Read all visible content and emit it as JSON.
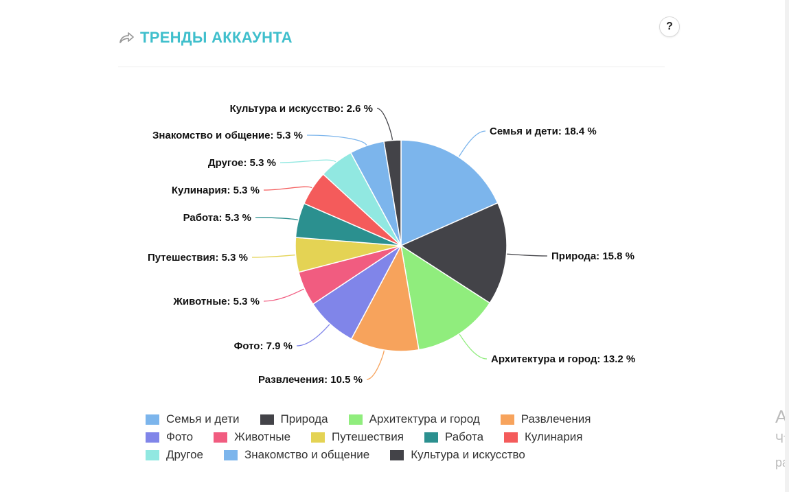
{
  "header": {
    "title": "ТРЕНДЫ АККАУНТА",
    "share_icon": "share-arrow-icon",
    "help_label": "?"
  },
  "cutoff": {
    "line1": "А",
    "line2": "Чт",
    "line3": "ра"
  },
  "chart_data": {
    "type": "pie",
    "unit": "%",
    "categories": [
      "Семья и дети",
      "Природа",
      "Архитектура и город",
      "Развлечения",
      "Фото",
      "Животные",
      "Путешествия",
      "Работа",
      "Кулинария",
      "Другое",
      "Знакомство и общение",
      "Культура и искусство"
    ],
    "values": [
      18.4,
      15.8,
      13.2,
      10.5,
      7.9,
      5.3,
      5.3,
      5.3,
      5.3,
      5.3,
      5.3,
      2.6
    ],
    "colors": [
      "#7cb5ec",
      "#434348",
      "#90ed7d",
      "#f7a35c",
      "#8085e9",
      "#f15c80",
      "#e4d354",
      "#2b908f",
      "#f45b5b",
      "#91e8e1",
      "#7cb5ec",
      "#434348"
    ],
    "labels": [
      "Семья и дети: 18.4 %",
      "Природа: 15.8 %",
      "Архитектура и город: 13.2 %",
      "Развлечения: 10.5 %",
      "Фото: 7.9 %",
      "Животные: 5.3 %",
      "Путешествия: 5.3 %",
      "Работа: 5.3 %",
      "Кулинария: 5.3 %",
      "Другое: 5.3 %",
      "Знакомство и общение: 5.3 %",
      "Культура и искусство: 2.6 %"
    ],
    "start_angle": 0,
    "direction": "clockwise",
    "legend_position": "bottom"
  }
}
